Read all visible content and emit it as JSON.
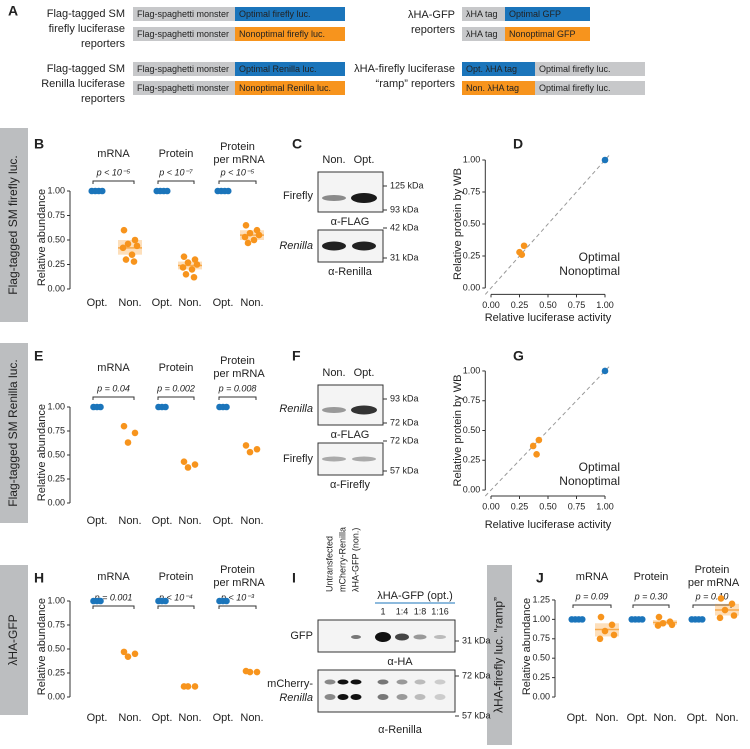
{
  "panel_labels": [
    "A",
    "B",
    "C",
    "D",
    "E",
    "F",
    "G",
    "H",
    "I",
    "J"
  ],
  "schematic": [
    {
      "label": [
        "Flag-tagged SM",
        "firefly luciferase",
        "reporters"
      ],
      "rows": [
        [
          "Flag-spaghetti monster",
          "Optimal firefly luc."
        ],
        [
          "Flag-spaghetti monster",
          "Nonoptimal firefly luc."
        ]
      ]
    },
    {
      "label": [
        "λHA-GFP",
        "reporters"
      ],
      "rows": [
        [
          "λHA tag",
          "Optimal GFP"
        ],
        [
          "λHA tag",
          "Nonoptimal GFP"
        ]
      ]
    },
    {
      "label": [
        "Flag-tagged SM",
        "Renilla luciferase",
        "reporters"
      ],
      "rows": [
        [
          "Flag-spaghetti monster",
          "Optimal Renilla luc."
        ],
        [
          "Flag-spaghetti monster",
          "Nonoptimal Renilla luc."
        ]
      ]
    },
    {
      "label": [
        "λHA-firefly luciferase",
        "“ramp” reporters"
      ],
      "rows": [
        [
          "Opt. λHA tag",
          "Optimal firefly luc."
        ],
        [
          "Non. λHA tag",
          "Optimal firefly luc."
        ]
      ]
    }
  ],
  "row_labels": [
    "Flag-tagged SM firefly luc.",
    "Flag-tagged SM Renilla luc.",
    "λHA-GFP",
    "λHA-firefly luc. “ramp”"
  ],
  "blots": [
    {
      "lanes": [
        "Non.",
        "Opt."
      ],
      "rows": [
        "Firefly",
        "Renilla"
      ],
      "markers": [
        "125 kDa",
        "93 kDa",
        "42 kDa",
        "31 kDa"
      ],
      "antibodies": [
        "α-FLAG",
        "α-Renilla"
      ]
    },
    {
      "lanes": [
        "Non.",
        "Opt."
      ],
      "rows": [
        "Renilla",
        "Firefly"
      ],
      "markers": [
        "93 kDa",
        "72 kDa",
        "72 kDa",
        "57 kDa"
      ],
      "antibodies": [
        "α-FLAG",
        "α-Firefly"
      ]
    },
    {
      "lanes": [
        "Untransfected",
        "mCherry-Renilla",
        "λHA-GFP (non.)",
        "λHA-GFP (opt.)"
      ],
      "dilutions": [
        "1",
        "1:4",
        "1:8",
        "1:16"
      ],
      "rows": [
        "GFP",
        "mCherry-Renilla"
      ],
      "markers": [
        "31 kDa",
        "72 kDa",
        "57 kDa"
      ],
      "antibodies": [
        "α-HA",
        "α-Renilla"
      ]
    }
  ],
  "chart_data": [
    {
      "type": "strip",
      "categories": [
        "mRNA",
        "Protein",
        "Protein per mRNA"
      ],
      "y_label": "Relative abundance",
      "ylim": [
        -0.05,
        1.1
      ],
      "yticks": [
        {
          "value": 0,
          "label": "0.00"
        },
        {
          "value": 0.25,
          "label": "0.25"
        },
        {
          "value": 0.5,
          "label": "0.50"
        },
        {
          "value": 0.75,
          "label": "0.75"
        },
        {
          "value": 1,
          "label": "1.00"
        }
      ],
      "p_values": [
        "p < 10⁻⁵",
        "p < 10⁻⁷",
        "p < 10⁻⁵"
      ],
      "series": [
        {
          "name": "Opt.",
          "color": "#1b75bb",
          "values": [
            [
              1,
              1,
              1,
              1
            ],
            [
              1,
              1,
              1,
              1
            ],
            [
              1,
              1,
              1,
              1
            ]
          ]
        },
        {
          "name": "Non.",
          "color": "#f7941d",
          "values": [
            [
              0.6,
              0.5,
              0.46,
              0.44,
              0.42,
              0.35,
              0.3,
              0.28
            ],
            [
              0.33,
              0.3,
              0.27,
              0.25,
              0.22,
              0.2,
              0.15,
              0.12
            ],
            [
              0.65,
              0.6,
              0.57,
              0.55,
              0.53,
              0.5,
              0.47
            ]
          ],
          "box": [
            [
              0.35,
              0.42,
              0.5
            ],
            [
              0.2,
              0.24,
              0.28
            ],
            [
              0.5,
              0.55,
              0.6
            ]
          ]
        }
      ]
    },
    {
      "type": "scatter",
      "x_label": "Relative luciferase activity",
      "y_label": "Relative protein by WB",
      "xlim": [
        -0.05,
        1.05
      ],
      "ylim": [
        -0.05,
        1.05
      ],
      "xticks": [
        {
          "value": 0,
          "label": "0.00"
        },
        {
          "value": 0.25,
          "label": "0.25"
        },
        {
          "value": 0.5,
          "label": "0.50"
        },
        {
          "value": 0.75,
          "label": "0.75"
        },
        {
          "value": 1,
          "label": "1.00"
        }
      ],
      "yticks": [
        {
          "value": 0,
          "label": "0.00"
        },
        {
          "value": 0.25,
          "label": "0.25"
        },
        {
          "value": 0.5,
          "label": "0.50"
        },
        {
          "value": 0.75,
          "label": "0.75"
        },
        {
          "value": 1,
          "label": "1.00"
        }
      ],
      "diagonal": true,
      "legend": "lower right",
      "series": [
        {
          "name": "Optimal",
          "color": "#1b75bb",
          "x": [
            1
          ],
          "y": [
            1
          ]
        },
        {
          "name": "Nonoptimal",
          "color": "#f7941d",
          "x": [
            0.25,
            0.27,
            0.29
          ],
          "y": [
            0.28,
            0.26,
            0.33
          ]
        }
      ]
    },
    {
      "type": "strip",
      "categories": [
        "mRNA",
        "Protein",
        "Protein per mRNA"
      ],
      "y_label": "Relative abundance",
      "ylim": [
        -0.05,
        1.1
      ],
      "yticks": [
        {
          "value": 0,
          "label": "0.00"
        },
        {
          "value": 0.25,
          "label": "0.25"
        },
        {
          "value": 0.5,
          "label": "0.50"
        },
        {
          "value": 0.75,
          "label": "0.75"
        },
        {
          "value": 1,
          "label": "1.00"
        }
      ],
      "p_values": [
        "p = 0.04",
        "p = 0.002",
        "p = 0.008"
      ],
      "series": [
        {
          "name": "Opt.",
          "color": "#1b75bb",
          "values": [
            [
              1,
              1,
              1
            ],
            [
              1,
              1,
              1
            ],
            [
              1,
              1,
              1
            ]
          ]
        },
        {
          "name": "Non.",
          "color": "#f7941d",
          "values": [
            [
              0.8,
              0.73,
              0.63
            ],
            [
              0.43,
              0.4,
              0.37
            ],
            [
              0.6,
              0.56,
              0.53
            ]
          ]
        }
      ]
    },
    {
      "type": "scatter",
      "x_label": "Relative luciferase activity",
      "y_label": "Relative protein by WB",
      "xlim": [
        -0.05,
        1.05
      ],
      "ylim": [
        -0.05,
        1.05
      ],
      "xticks": [
        {
          "value": 0,
          "label": "0.00"
        },
        {
          "value": 0.25,
          "label": "0.25"
        },
        {
          "value": 0.5,
          "label": "0.50"
        },
        {
          "value": 0.75,
          "label": "0.75"
        },
        {
          "value": 1,
          "label": "1.00"
        }
      ],
      "yticks": [
        {
          "value": 0,
          "label": "0.00"
        },
        {
          "value": 0.25,
          "label": "0.25"
        },
        {
          "value": 0.5,
          "label": "0.50"
        },
        {
          "value": 0.75,
          "label": "0.75"
        },
        {
          "value": 1,
          "label": "1.00"
        }
      ],
      "diagonal": true,
      "legend": "lower right",
      "series": [
        {
          "name": "Optimal",
          "color": "#1b75bb",
          "x": [
            1
          ],
          "y": [
            1
          ]
        },
        {
          "name": "Nonoptimal",
          "color": "#f7941d",
          "x": [
            0.37,
            0.4,
            0.42
          ],
          "y": [
            0.37,
            0.3,
            0.42
          ]
        }
      ]
    },
    {
      "type": "strip",
      "categories": [
        "mRNA",
        "Protein",
        "Protein per mRNA"
      ],
      "y_label": "Relative abundance",
      "ylim": [
        -0.05,
        1.1
      ],
      "yticks": [
        {
          "value": 0,
          "label": "0.00"
        },
        {
          "value": 0.25,
          "label": "0.25"
        },
        {
          "value": 0.5,
          "label": "0.50"
        },
        {
          "value": 0.75,
          "label": "0.75"
        },
        {
          "value": 1,
          "label": "1.00"
        }
      ],
      "p_values": [
        "p = 0.001",
        "p < 10⁻⁴",
        "p < 10⁻³"
      ],
      "series": [
        {
          "name": "Opt.",
          "color": "#1b75bb",
          "values": [
            [
              1,
              1,
              1
            ],
            [
              1,
              1,
              1
            ],
            [
              1,
              1,
              1
            ]
          ]
        },
        {
          "name": "Non.",
          "color": "#f7941d",
          "values": [
            [
              0.47,
              0.45,
              0.42
            ],
            [
              0.11,
              0.11,
              0.11
            ],
            [
              0.27,
              0.26,
              0.26
            ]
          ]
        }
      ]
    },
    {
      "type": "strip",
      "categories": [
        "mRNA",
        "Protein",
        "Protein per mRNA"
      ],
      "y_label": "Relative abundance",
      "ylim": [
        -0.05,
        1.35
      ],
      "yticks": [
        {
          "value": 0,
          "label": "0.00"
        },
        {
          "value": 0.25,
          "label": "0.25"
        },
        {
          "value": 0.5,
          "label": "0.50"
        },
        {
          "value": 0.75,
          "label": "0.75"
        },
        {
          "value": 1,
          "label": "1.00"
        },
        {
          "value": 1.25,
          "label": "1.25"
        }
      ],
      "p_values": [
        "p = 0.09",
        "p = 0.30",
        "p = 0.10"
      ],
      "series": [
        {
          "name": "Opt.",
          "color": "#1b75bb",
          "values": [
            [
              1,
              1,
              1,
              1
            ],
            [
              1,
              1,
              1,
              1
            ],
            [
              1,
              1,
              1,
              1
            ]
          ]
        },
        {
          "name": "Non.",
          "color": "#f7941d",
          "values": [
            [
              1.03,
              0.93,
              0.85,
              0.8,
              0.75
            ],
            [
              1.03,
              0.97,
              0.95,
              0.93,
              0.92
            ],
            [
              1.27,
              1.2,
              1.12,
              1.05,
              1.02
            ]
          ],
          "box": [
            [
              0.78,
              0.87,
              0.95
            ],
            [
              0.93,
              0.96,
              0.99
            ],
            [
              1.05,
              1.12,
              1.2
            ]
          ]
        }
      ]
    }
  ]
}
